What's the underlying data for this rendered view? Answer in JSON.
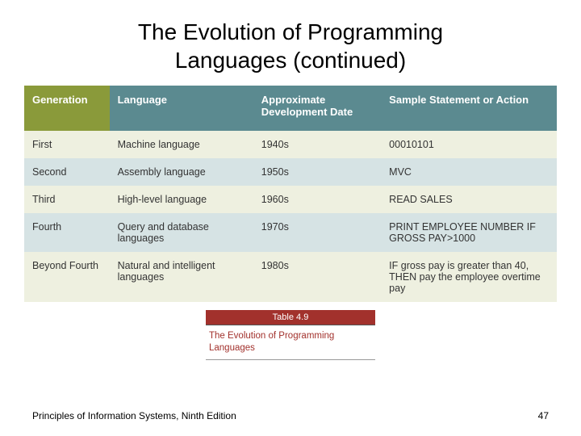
{
  "title_line1": "The Evolution of Programming",
  "title_line2": "Languages  (continued)",
  "table": {
    "header_bg_colors": [
      "#8a9a3a",
      "#5b8a90",
      "#5b8a90",
      "#5b8a90"
    ],
    "row_bg_even": "#eef0e0",
    "row_bg_odd": "#d6e3e4",
    "columns": [
      "Generation",
      "Language",
      "Approximate Development Date",
      "Sample Statement or Action"
    ],
    "rows": [
      [
        "First",
        "Machine language",
        "1940s",
        "00010101"
      ],
      [
        "Second",
        "Assembly language",
        "1950s",
        "MVC"
      ],
      [
        "Third",
        "High-level language",
        "1960s",
        "READ SALES"
      ],
      [
        "Fourth",
        "Query and database languages",
        "1970s",
        "PRINT EMPLOYEE NUMBER IF GROSS PAY>1000"
      ],
      [
        "Beyond Fourth",
        "Natural and intelligent languages",
        "1980s",
        "IF gross pay is greater than 40, THEN pay the employee overtime pay"
      ]
    ]
  },
  "caption": {
    "label": "Table 4.9",
    "text": "The Evolution of Programming Languages"
  },
  "footer": {
    "left": "Principles of Information Systems, Ninth Edition",
    "page": "47"
  },
  "colors": {
    "caption_bg": "#a2312c",
    "caption_text": "#a2312c"
  }
}
